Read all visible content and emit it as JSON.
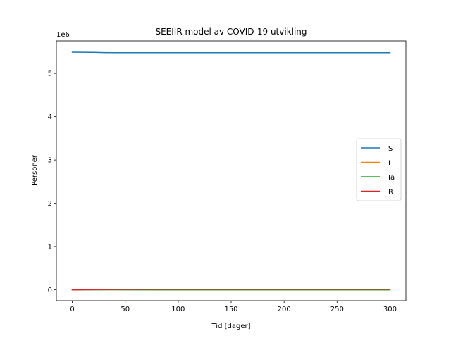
{
  "chart_data": {
    "type": "line",
    "title": "SEEIIR model av COVID-19 utvikling",
    "xlabel": "Tid [dager]",
    "ylabel": "Personer",
    "y_offset_label": "1e6",
    "xlim": [
      -15,
      315
    ],
    "ylim": [
      -250000,
      5750000
    ],
    "x_ticks": [
      0,
      50,
      100,
      150,
      200,
      250,
      300
    ],
    "y_ticks": [
      0,
      1000000,
      2000000,
      3000000,
      4000000,
      5000000
    ],
    "y_tick_labels": [
      "0",
      "1",
      "2",
      "3",
      "4",
      "5"
    ],
    "legend_position": "center-right",
    "grid": false,
    "series": [
      {
        "name": "S",
        "color": "#1f77b4",
        "x": [
          0,
          10,
          20,
          30,
          40,
          60,
          100,
          150,
          200,
          250,
          300
        ],
        "y": [
          5490000,
          5488000,
          5485000,
          5480000,
          5478000,
          5477000,
          5477000,
          5477000,
          5477000,
          5477000,
          5477000
        ]
      },
      {
        "name": "I",
        "color": "#ff7f0e",
        "x": [
          0,
          10,
          20,
          30,
          40,
          60,
          100,
          150,
          200,
          250,
          300
        ],
        "y": [
          500,
          1000,
          2000,
          2500,
          2000,
          1200,
          400,
          100,
          50,
          20,
          10
        ]
      },
      {
        "name": "Ia",
        "color": "#2ca02c",
        "x": [
          0,
          10,
          20,
          30,
          40,
          60,
          100,
          150,
          200,
          250,
          300
        ],
        "y": [
          300,
          600,
          1200,
          1500,
          1200,
          700,
          250,
          60,
          30,
          10,
          5
        ]
      },
      {
        "name": "R",
        "color": "#d62728",
        "x": [
          0,
          10,
          20,
          30,
          40,
          60,
          100,
          150,
          200,
          250,
          300
        ],
        "y": [
          0,
          1500,
          4000,
          8000,
          11000,
          13000,
          13500,
          13500,
          13500,
          13500,
          13500
        ]
      }
    ]
  }
}
